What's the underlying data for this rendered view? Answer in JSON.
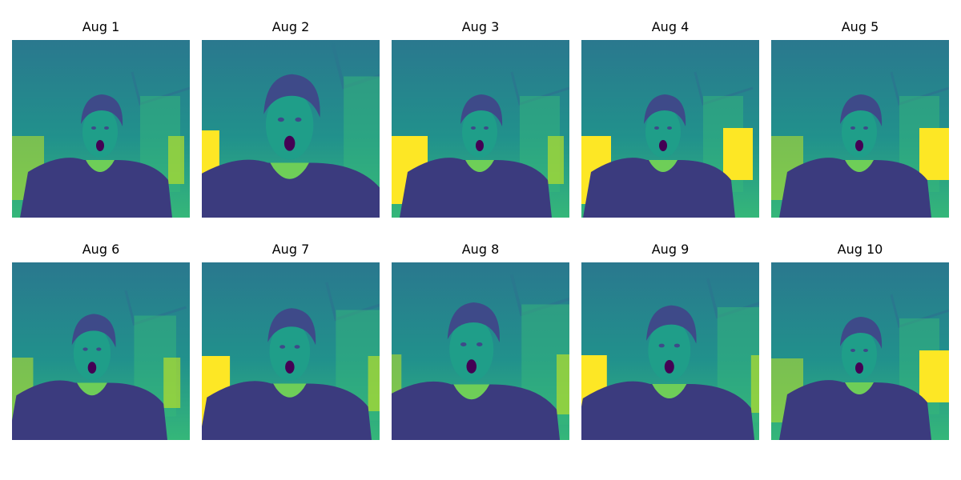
{
  "figure": {
    "panels": [
      {
        "title": "Aug 1",
        "variant": "base",
        "bright_window": "none",
        "zoom": 1.0,
        "shift": 0,
        "tilt": 0
      },
      {
        "title": "Aug 2",
        "variant": "zoomed",
        "bright_window": "left",
        "zoom": 1.35,
        "shift": 0,
        "tilt": 0
      },
      {
        "title": "Aug 3",
        "variant": "base",
        "bright_window": "left",
        "zoom": 1.0,
        "shift": 0,
        "tilt": 0
      },
      {
        "title": "Aug 4",
        "variant": "base",
        "bright_window": "both",
        "zoom": 1.0,
        "shift": -8,
        "tilt": 0
      },
      {
        "title": "Aug 5",
        "variant": "base",
        "bright_window": "right",
        "zoom": 1.0,
        "shift": 0,
        "tilt": 0
      },
      {
        "title": "Aug 6",
        "variant": "base",
        "bright_window": "none",
        "zoom": 1.05,
        "shift": -10,
        "tilt": 0
      },
      {
        "title": "Aug 7",
        "variant": "zoomed",
        "bright_window": "left",
        "zoom": 1.15,
        "shift": 0,
        "tilt": 0
      },
      {
        "title": "Aug 8",
        "variant": "zoomed",
        "bright_window": "none",
        "zoom": 1.25,
        "shift": -10,
        "tilt": 0
      },
      {
        "title": "Aug 9",
        "variant": "zoomed",
        "bright_window": "left",
        "zoom": 1.2,
        "shift": 0,
        "tilt": 0
      },
      {
        "title": "Aug 10",
        "variant": "base",
        "bright_window": "right",
        "zoom": 1.0,
        "shift": 0,
        "tilt": 0
      }
    ],
    "colors": {
      "wall_dark": "#2a788e",
      "wall_mid": "#21918c",
      "wall_light": "#35b779",
      "window_bright": "#fde725",
      "window_mid": "#b5de2b",
      "shirt": "#3b3b7e",
      "shirt_shadow": "#433d84",
      "hair": "#3e4a89",
      "face": "#1f9e89",
      "face_light": "#6ece58",
      "mouth": "#440154"
    }
  }
}
